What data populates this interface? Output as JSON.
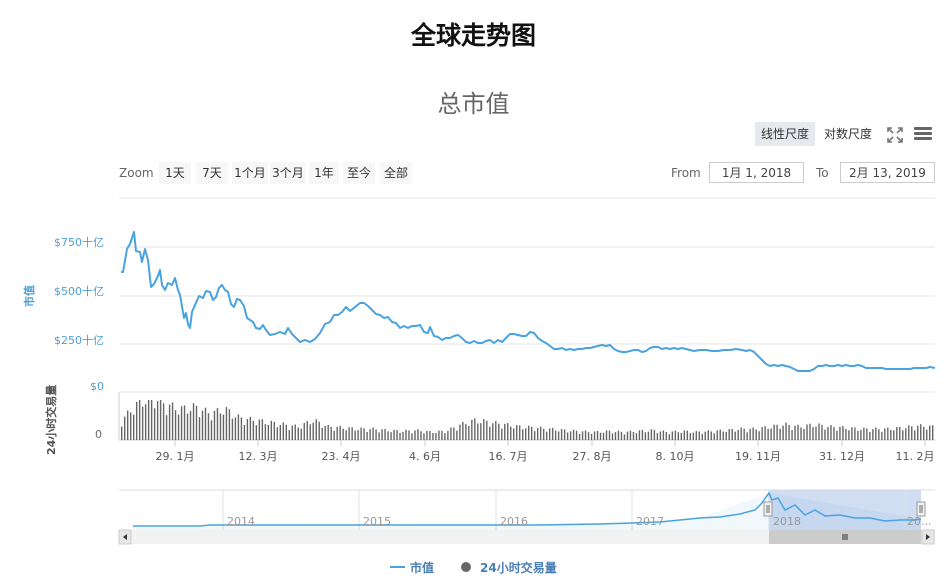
{
  "header": {
    "title": "全球走势图"
  },
  "chart": {
    "title": "总市值",
    "scale_buttons": [
      {
        "label": "线性尺度",
        "active": true
      },
      {
        "label": "对数尺度",
        "active": false
      }
    ],
    "icons": {
      "fullscreen": "fullscreen-icon",
      "menu": "hamburger-menu-icon"
    },
    "zoom": {
      "label": "Zoom",
      "buttons": [
        "1天",
        "7天",
        "1个月",
        "3个月",
        "1年",
        "至今",
        "全部"
      ]
    },
    "range": {
      "from_label": "From",
      "from_value": "1月 1, 2018",
      "to_label": "To",
      "to_value": "2月 13, 2019"
    },
    "colors": {
      "line": "#4aa3df",
      "bars": "#666666",
      "navigator_mask": "#c6d5ee",
      "grid": "#e6e6e6"
    },
    "legend": [
      {
        "label": "市值",
        "symbol": "line"
      },
      {
        "label": "24小时交易量",
        "symbol": "circle"
      }
    ],
    "navigator": {
      "years": [
        "2014",
        "2015",
        "2016",
        "2017",
        "2018",
        "20..."
      ]
    }
  },
  "chart_data": {
    "type": "line",
    "title": "总市值",
    "subtitle": "",
    "xlabel": "",
    "ylabel": "市值",
    "ylabel_secondary": "24小时交易量",
    "y_ticks": [
      "$0",
      "$250十亿",
      "$500十亿",
      "$750十亿"
    ],
    "y_tick_secondary": [
      "0"
    ],
    "ylim": [
      0,
      850
    ],
    "x_ticks": [
      "29. 1月",
      "12. 3月",
      "23. 4月",
      "4. 6月",
      "16. 7月",
      "27. 8月",
      "8. 10月",
      "19. 11月",
      "31. 12月",
      "11. 2月"
    ],
    "grid": true,
    "legend_position": "bottom",
    "series": [
      {
        "name": "市值",
        "unit": "十亿 USD",
        "x": [
          "2018-01-01",
          "2018-01-04",
          "2018-01-07",
          "2018-01-10",
          "2018-01-13",
          "2018-01-17",
          "2018-01-20",
          "2018-01-24",
          "2018-01-29",
          "2018-02-02",
          "2018-02-06",
          "2018-02-10",
          "2018-02-15",
          "2018-02-20",
          "2018-02-25",
          "2018-03-01",
          "2018-03-06",
          "2018-03-12",
          "2018-03-18",
          "2018-03-25",
          "2018-04-01",
          "2018-04-08",
          "2018-04-15",
          "2018-04-23",
          "2018-04-30",
          "2018-05-06",
          "2018-05-13",
          "2018-05-20",
          "2018-05-28",
          "2018-06-04",
          "2018-06-12",
          "2018-06-20",
          "2018-06-28",
          "2018-07-06",
          "2018-07-16",
          "2018-07-25",
          "2018-08-05",
          "2018-08-14",
          "2018-08-27",
          "2018-09-10",
          "2018-09-22",
          "2018-10-08",
          "2018-10-20",
          "2018-11-01",
          "2018-11-12",
          "2018-11-19",
          "2018-11-26",
          "2018-12-06",
          "2018-12-15",
          "2018-12-24",
          "2018-12-31",
          "2019-01-10",
          "2019-01-20",
          "2019-01-30",
          "2019-02-06",
          "2019-02-13"
        ],
        "values": [
          610,
          620,
          710,
          760,
          820,
          700,
          680,
          720,
          580,
          530,
          600,
          500,
          540,
          520,
          520,
          470,
          450,
          340,
          380,
          420,
          400,
          280,
          270,
          290,
          340,
          410,
          440,
          460,
          400,
          350,
          330,
          320,
          300,
          280,
          300,
          290,
          250,
          240,
          245,
          220,
          225,
          225,
          220,
          225,
          210,
          170,
          160,
          140,
          120,
          125,
          130,
          140,
          135,
          128,
          123,
          125
        ]
      },
      {
        "name": "24小时交易量",
        "type": "column",
        "note": "relative heights; peak in early Jan 2018, low and flat thereafter",
        "values_relative": [
          0.45,
          0.8,
          1.0,
          0.8,
          0.7,
          0.75,
          0.6,
          0.7,
          0.5,
          0.45,
          0.4,
          0.35,
          0.3,
          0.45,
          0.3,
          0.28,
          0.25,
          0.25,
          0.22,
          0.2,
          0.22,
          0.18,
          0.2,
          0.35,
          0.45,
          0.4,
          0.35,
          0.3,
          0.28,
          0.25,
          0.22,
          0.2,
          0.18,
          0.2,
          0.18,
          0.2,
          0.22,
          0.18,
          0.2,
          0.18,
          0.2,
          0.22,
          0.25,
          0.25,
          0.3,
          0.35,
          0.3,
          0.35,
          0.3,
          0.28,
          0.25,
          0.25,
          0.25,
          0.28,
          0.32,
          0.3
        ]
      }
    ],
    "navigator": {
      "x_ticks": [
        "2014",
        "2015",
        "2016",
        "2017",
        "2018",
        "20..."
      ],
      "selected_range": [
        "2018-01-01",
        "2019-02-13"
      ]
    }
  }
}
